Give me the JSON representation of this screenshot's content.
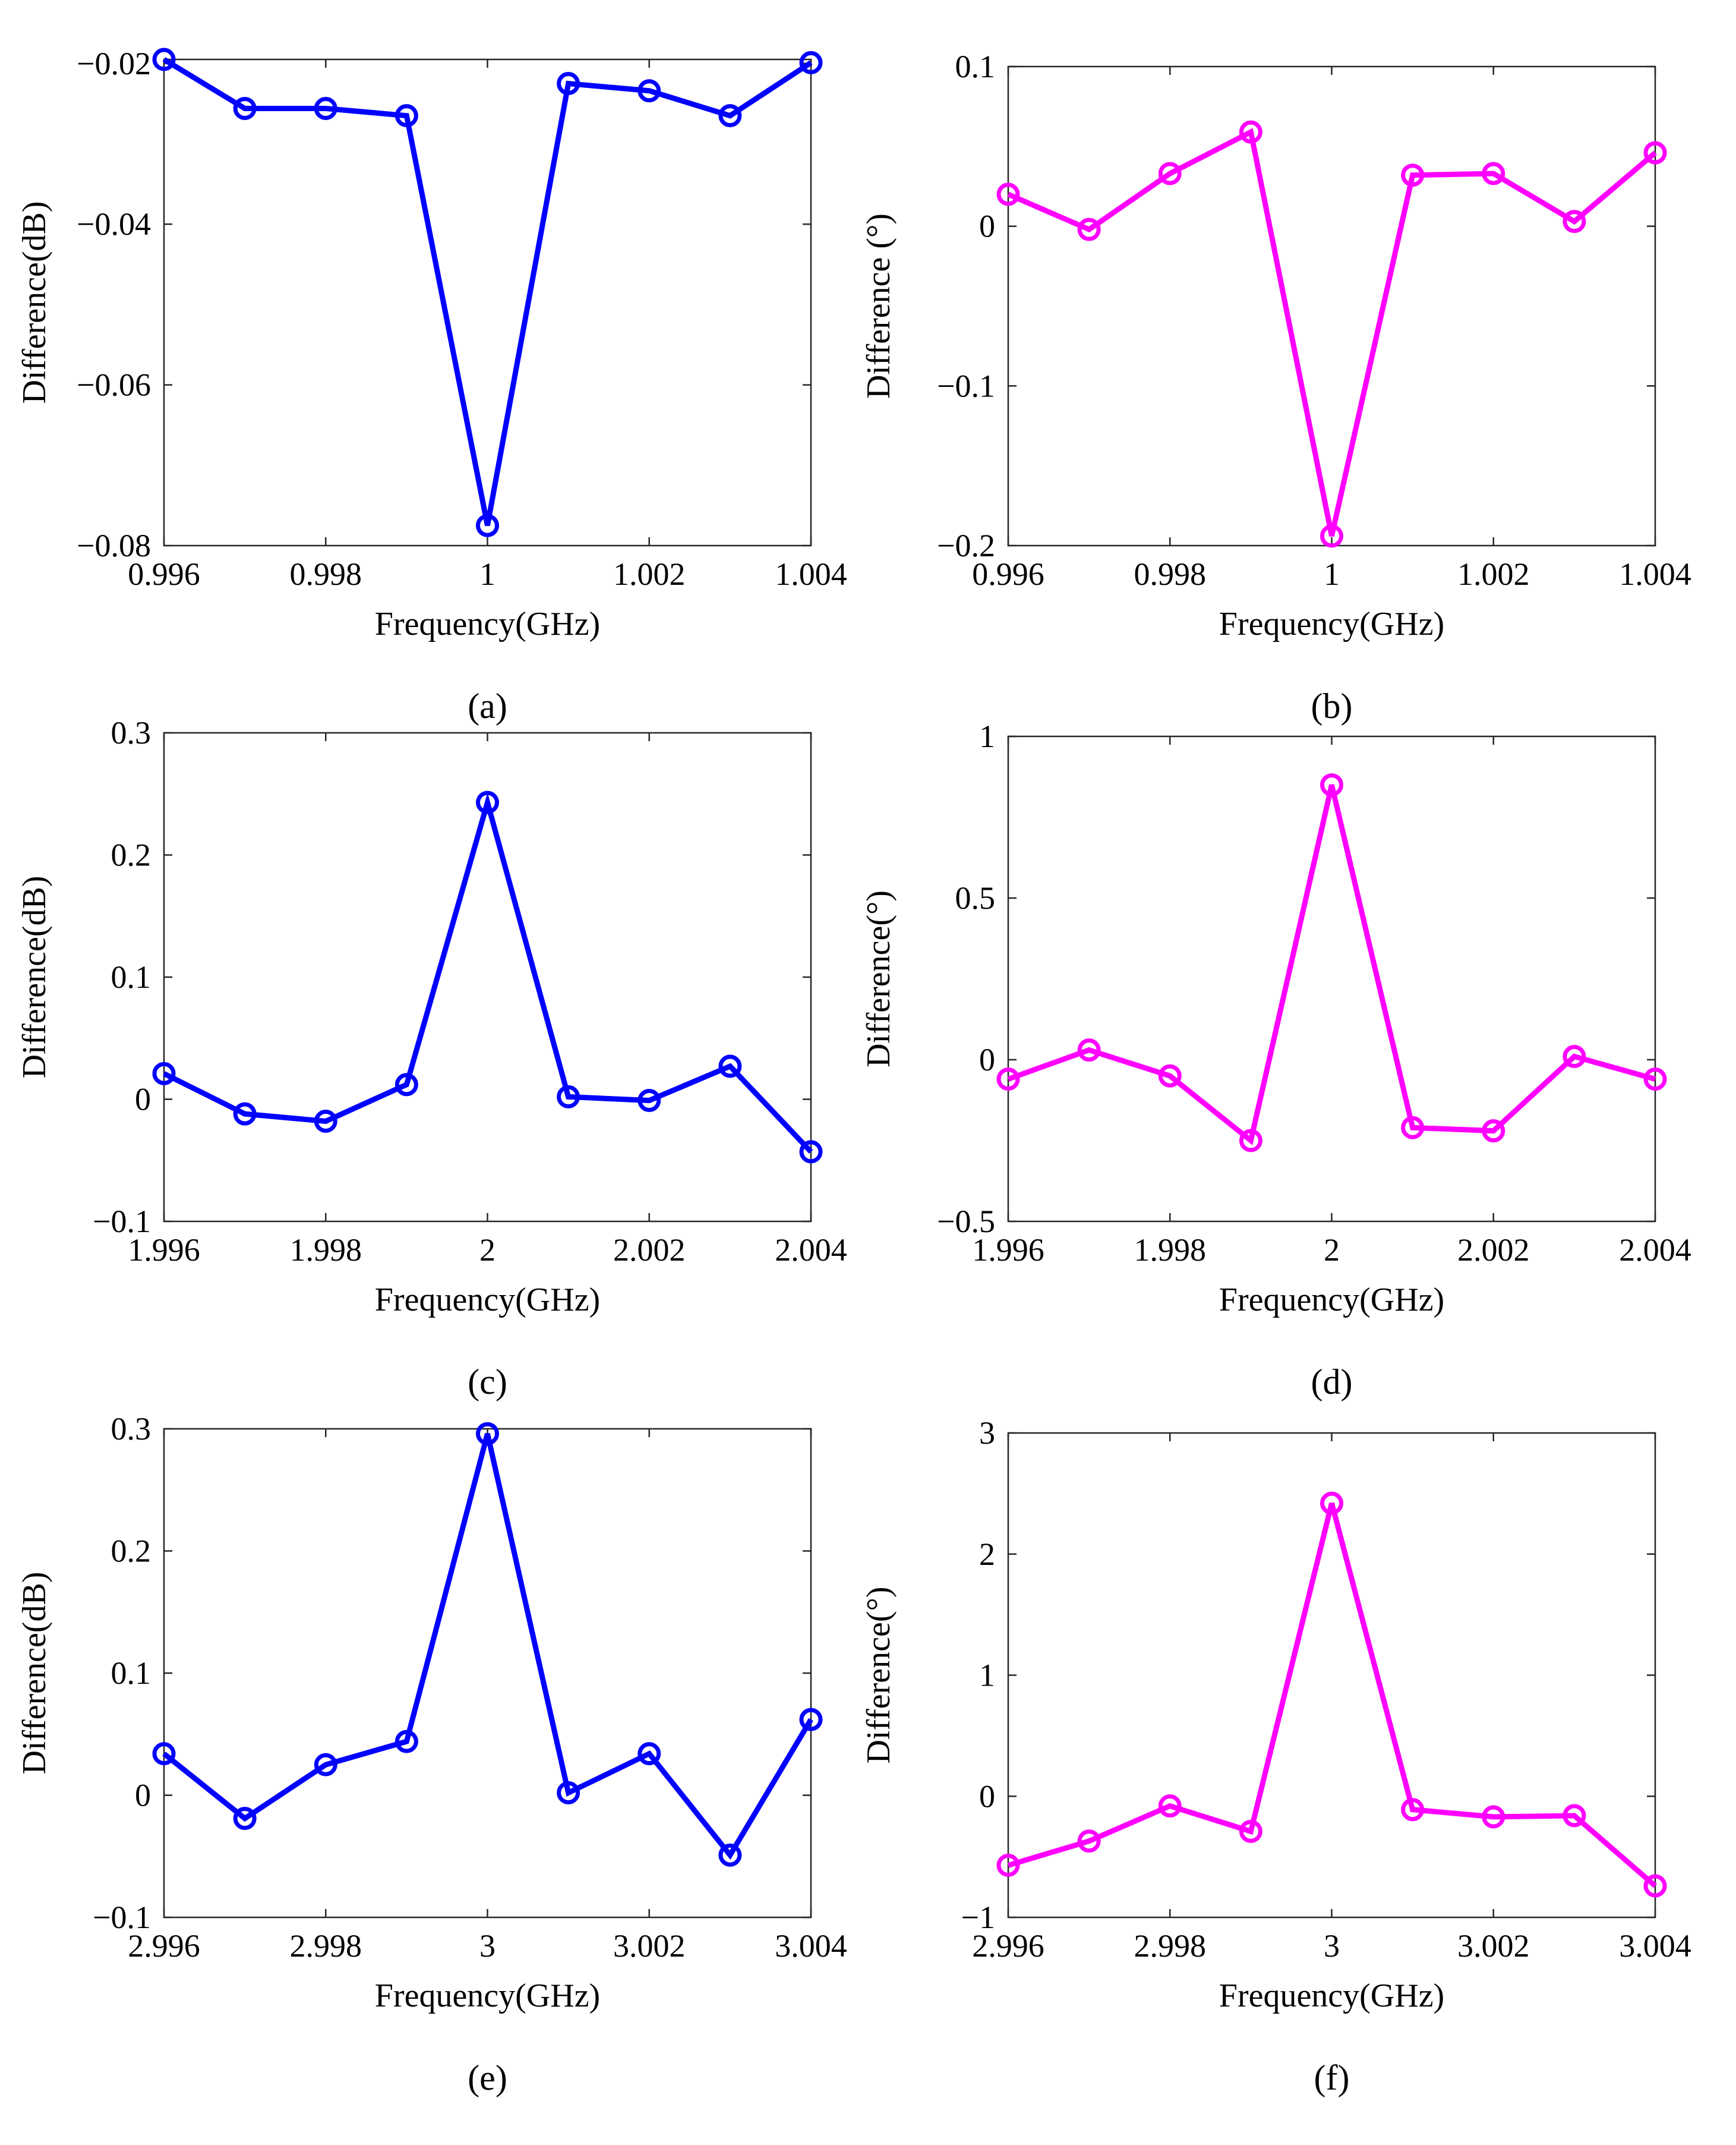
{
  "figure": {
    "panels": [
      "a",
      "b",
      "c",
      "d",
      "e",
      "f"
    ]
  },
  "chart_data": [
    {
      "id": "a",
      "type": "line",
      "caption": "(a)",
      "title": "",
      "xlabel": "Frequency(GHz)",
      "ylabel": "Difference(dB)",
      "color": "#0000ff",
      "xlim": [
        0.996,
        1.004
      ],
      "ylim": [
        -0.08,
        -0.0195
      ],
      "xticks": [
        0.996,
        0.998,
        1,
        1.002,
        1.004
      ],
      "xtick_labels": [
        "0.996",
        "0.998",
        "1",
        "1.002",
        "1.004"
      ],
      "yticks": [
        -0.08,
        -0.06,
        -0.04,
        -0.02
      ],
      "ytick_labels": [
        "−0.08",
        "−0.06",
        "−0.04",
        "−0.02"
      ],
      "x": [
        0.996,
        0.997,
        0.998,
        0.999,
        1.0,
        1.001,
        1.002,
        1.003,
        1.004
      ],
      "y": [
        -0.0195,
        -0.0256,
        -0.0256,
        -0.0265,
        -0.0775,
        -0.0225,
        -0.0234,
        -0.0265,
        -0.0199
      ]
    },
    {
      "id": "b",
      "type": "line",
      "caption": "(b)",
      "title": "",
      "xlabel": "Frequency(GHz)",
      "ylabel": "Difference (°)",
      "color": "#ff00ff",
      "xlim": [
        0.996,
        1.004
      ],
      "ylim": [
        -0.2,
        0.1
      ],
      "xticks": [
        0.996,
        0.998,
        1,
        1.002,
        1.004
      ],
      "xtick_labels": [
        "0.996",
        "0.998",
        "1",
        "1.002",
        "1.004"
      ],
      "yticks": [
        -0.2,
        -0.1,
        0,
        0.1
      ],
      "ytick_labels": [
        "−0.2",
        "−0.1",
        "0",
        "0.1"
      ],
      "x": [
        0.996,
        0.997,
        0.998,
        0.999,
        1.0,
        1.001,
        1.002,
        1.003,
        1.004
      ],
      "y": [
        0.02,
        -0.002,
        0.033,
        0.059,
        -0.194,
        0.032,
        0.033,
        0.003,
        0.046
      ]
    },
    {
      "id": "c",
      "type": "line",
      "caption": "(c)",
      "title": "",
      "xlabel": "Frequency(GHz)",
      "ylabel": "Difference(dB)",
      "color": "#0000ff",
      "xlim": [
        1.996,
        2.004
      ],
      "ylim": [
        -0.1,
        0.3
      ],
      "xticks": [
        1.996,
        1.998,
        2,
        2.002,
        2.004
      ],
      "xtick_labels": [
        "1.996",
        "1.998",
        "2",
        "2.002",
        "2.004"
      ],
      "yticks": [
        -0.1,
        0,
        0.1,
        0.2,
        0.3
      ],
      "ytick_labels": [
        "−0.1",
        "0",
        "0.1",
        "0.2",
        "0.3"
      ],
      "x": [
        1.996,
        1.997,
        1.998,
        1.999,
        2.0,
        2.001,
        2.002,
        2.003,
        2.004
      ],
      "y": [
        0.021,
        -0.012,
        -0.018,
        0.012,
        0.243,
        0.002,
        -0.001,
        0.027,
        -0.043
      ]
    },
    {
      "id": "d",
      "type": "line",
      "caption": "(d)",
      "title": "",
      "xlabel": "Frequency(GHz)",
      "ylabel": "Difference(°)",
      "color": "#ff00ff",
      "xlim": [
        1.996,
        2.004
      ],
      "ylim": [
        -0.5,
        1
      ],
      "xticks": [
        1.996,
        1.998,
        2,
        2.002,
        2.004
      ],
      "xtick_labels": [
        "1.996",
        "1.998",
        "2",
        "2.002",
        "2.004"
      ],
      "yticks": [
        -0.5,
        0,
        0.5,
        1
      ],
      "ytick_labels": [
        "−0.5",
        "0",
        "0.5",
        "1"
      ],
      "x": [
        1.996,
        1.997,
        1.998,
        1.999,
        2.0,
        2.001,
        2.002,
        2.003,
        2.004
      ],
      "y": [
        -0.06,
        0.03,
        -0.05,
        -0.25,
        0.85,
        -0.21,
        -0.22,
        0.01,
        -0.06
      ]
    },
    {
      "id": "e",
      "type": "line",
      "caption": "(e)",
      "title": "",
      "xlabel": "Frequency(GHz)",
      "ylabel": "Difference(dB)",
      "color": "#0000ff",
      "xlim": [
        2.996,
        3.004
      ],
      "ylim": [
        -0.1,
        0.3
      ],
      "xticks": [
        2.996,
        2.998,
        3,
        3.002,
        3.004
      ],
      "xtick_labels": [
        "2.996",
        "2.998",
        "3",
        "3.002",
        "3.004"
      ],
      "yticks": [
        -0.1,
        0,
        0.1,
        0.2,
        0.3
      ],
      "ytick_labels": [
        "−0.1",
        "0",
        "0.1",
        "0.2",
        "0.3"
      ],
      "x": [
        2.996,
        2.997,
        2.998,
        2.999,
        3.0,
        3.001,
        3.002,
        3.003,
        3.004
      ],
      "y": [
        0.034,
        -0.019,
        0.025,
        0.044,
        0.296,
        0.002,
        0.034,
        -0.049,
        0.062
      ]
    },
    {
      "id": "f",
      "type": "line",
      "caption": "(f)",
      "title": "",
      "xlabel": "Frequency(GHz)",
      "ylabel": "Difference(°)",
      "color": "#ff00ff",
      "xlim": [
        2.996,
        3.004
      ],
      "ylim": [
        -1,
        3
      ],
      "xticks": [
        2.996,
        2.998,
        3,
        3.002,
        3.004
      ],
      "xtick_labels": [
        "2.996",
        "2.998",
        "3",
        "3.002",
        "3.004"
      ],
      "yticks": [
        -1,
        0,
        1,
        2,
        3
      ],
      "ytick_labels": [
        "−1",
        "0",
        "1",
        "2",
        "3"
      ],
      "x": [
        2.996,
        2.997,
        2.998,
        2.999,
        3.0,
        3.001,
        3.002,
        3.003,
        3.004
      ],
      "y": [
        -0.57,
        -0.37,
        -0.08,
        -0.29,
        2.42,
        -0.11,
        -0.17,
        -0.16,
        -0.74
      ]
    }
  ]
}
